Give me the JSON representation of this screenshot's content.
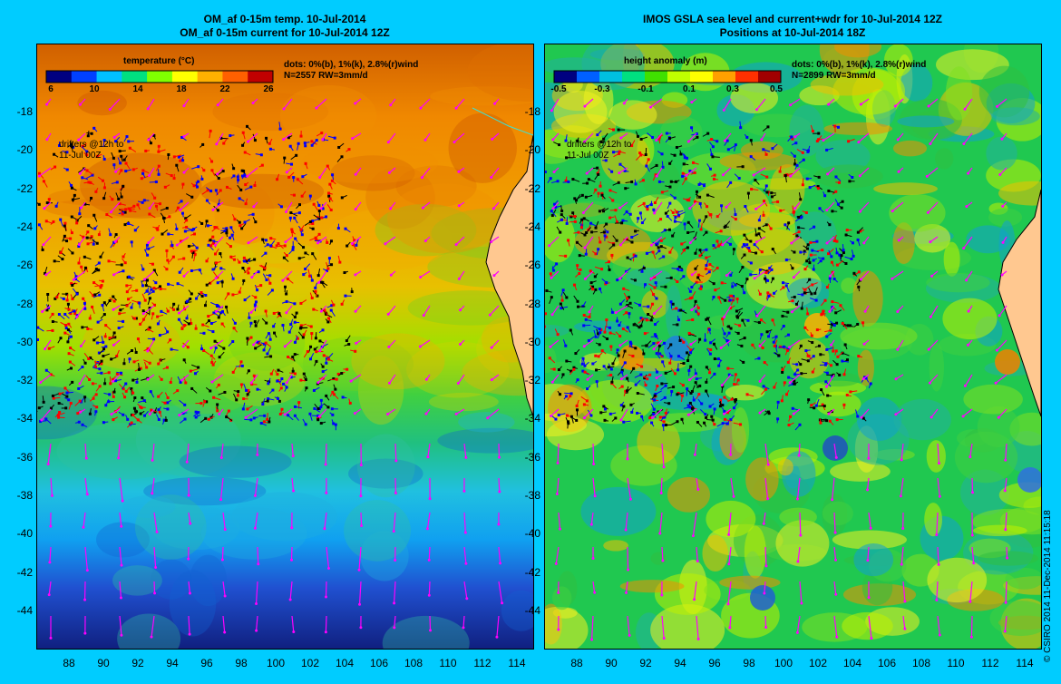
{
  "left": {
    "title_line1": "OM_af 0-15m temp. 10-Jul-2014",
    "title_line2": "OM_af 0-15m current for 10-Jul-2014 12Z",
    "colorbar_title": "temperature (°C)",
    "colorbar_ticks": [
      "6",
      "10",
      "14",
      "18",
      "22",
      "26"
    ],
    "colorbar_colors": [
      "#000080",
      "#0040ff",
      "#00c0ff",
      "#00e080",
      "#80ff00",
      "#ffff00",
      "#ffb000",
      "#ff6000",
      "#c00000"
    ],
    "info_line1": "dots: 0%(b), 1%(k), 2.8%(r)wind",
    "info_line2": "N=2557 RW=3mm/d",
    "drifter_line1": "drifters @12h to",
    "drifter_line2": "11-Jul 00Z"
  },
  "right": {
    "title_line1": "IMOS GSLA sea level and current+wdr for 10-Jul-2014 12Z",
    "title_line2": "Positions at 10-Jul-2014 18Z",
    "colorbar_title": "height anomaly (m)",
    "colorbar_ticks": [
      "-0.5",
      "-0.3",
      "-0.1",
      "0.1",
      "0.3",
      "0.5"
    ],
    "colorbar_colors": [
      "#000080",
      "#0060ff",
      "#00c0e0",
      "#00e080",
      "#40e000",
      "#c0ff00",
      "#ffff00",
      "#ffa000",
      "#ff3000",
      "#a00000"
    ],
    "info_line1": "dots: 0%(b), 1%(k), 2.8%(r)wind",
    "info_line2": "N=2899 RW=3mm/d",
    "drifter_line1": "drifters @12h to",
    "drifter_line2": "11-Jul 00Z"
  },
  "y_ticks": [
    "-18",
    "-20",
    "-22",
    "-24",
    "-26",
    "-28",
    "-30",
    "-32",
    "-34",
    "-36",
    "-38",
    "-40",
    "-42",
    "-44"
  ],
  "x_ticks": [
    "88",
    "90",
    "92",
    "94",
    "96",
    "98",
    "100",
    "102",
    "104",
    "106",
    "108",
    "110",
    "112",
    "114"
  ],
  "credit": "© CSIRO 2014   11-Dec-2014 11:15:18",
  "colors": {
    "background": "#00ccff",
    "land": "#ffc890",
    "coastline": "#40e0d0",
    "drifter_blue": "#0000ff",
    "drifter_black": "#000000",
    "drifter_red": "#ff0000",
    "current_arrow": "#ff00ff"
  }
}
